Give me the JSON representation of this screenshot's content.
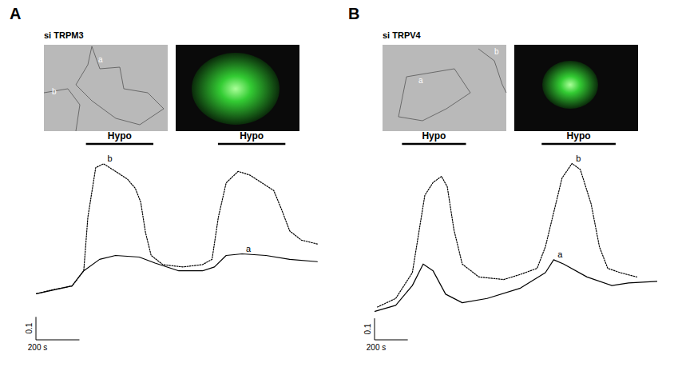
{
  "chart_data": [
    {
      "type": "line",
      "panel": "A",
      "title": "si TRPM3",
      "tick_labels": false,
      "xlim": [
        0,
        1300
      ],
      "ylim": [
        0,
        0.75
      ],
      "stimuli": [
        {
          "label": "Hypo",
          "start": 230,
          "end": 540
        },
        {
          "label": "Hypo",
          "start": 837,
          "end": 1147
        }
      ],
      "scale_bars": {
        "x": {
          "value": 200,
          "label": "200 s"
        },
        "y": {
          "value": 0.1,
          "label": "0.1"
        }
      },
      "series": [
        {
          "name": "a",
          "color": "#000000",
          "line_style": "solid",
          "x": [
            0,
            164,
            218,
            291,
            364,
            473,
            546,
            655,
            764,
            819,
            873,
            946,
            1056,
            1165,
            1292
          ],
          "values": [
            0.133,
            0.167,
            0.233,
            0.283,
            0.3,
            0.293,
            0.267,
            0.233,
            0.233,
            0.25,
            0.3,
            0.307,
            0.3,
            0.283,
            0.273
          ]
        },
        {
          "name": "b",
          "color": "#000000",
          "line_style": "dotted",
          "x": [
            0,
            73,
            164,
            218,
            237,
            273,
            309,
            364,
            419,
            455,
            480,
            502,
            528,
            582,
            673,
            764,
            808,
            837,
            873,
            928,
            983,
            1037,
            1092,
            1128,
            1165,
            1219,
            1292
          ],
          "values": [
            0.133,
            0.15,
            0.167,
            0.233,
            0.467,
            0.683,
            0.7,
            0.667,
            0.633,
            0.593,
            0.533,
            0.4,
            0.3,
            0.26,
            0.25,
            0.26,
            0.283,
            0.467,
            0.617,
            0.667,
            0.65,
            0.617,
            0.583,
            0.5,
            0.407,
            0.367,
            0.35
          ]
        }
      ]
    },
    {
      "type": "line",
      "panel": "B",
      "title": "si TRPV4",
      "tick_labels": false,
      "xlim": [
        0,
        1700
      ],
      "ylim": [
        0,
        0.8
      ],
      "stimuli": [
        {
          "label": "Hypo",
          "start": 165,
          "end": 550
        },
        {
          "label": "Hypo",
          "start": 1005,
          "end": 1450
        }
      ],
      "scale_bars": {
        "x": {
          "value": 200,
          "label": "200 s"
        },
        "y": {
          "value": 0.1,
          "label": "0.1"
        }
      },
      "series": [
        {
          "name": "a",
          "color": "#000000",
          "line_style": "solid",
          "x": [
            0,
            125,
            225,
            290,
            350,
            425,
            525,
            675,
            875,
            1025,
            1075,
            1135,
            1275,
            1425,
            1525,
            1700
          ],
          "values": [
            0.06,
            0.088,
            0.18,
            0.28,
            0.248,
            0.14,
            0.1,
            0.12,
            0.168,
            0.24,
            0.3,
            0.28,
            0.22,
            0.18,
            0.192,
            0.2
          ]
        },
        {
          "name": "b",
          "color": "#000000",
          "line_style": "dotted",
          "x": [
            15,
            125,
            225,
            300,
            350,
            400,
            435,
            475,
            525,
            625,
            775,
            875,
            975,
            1025,
            1075,
            1125,
            1185,
            1235,
            1300,
            1350,
            1400,
            1475,
            1575
          ],
          "values": [
            0.08,
            0.12,
            0.24,
            0.6,
            0.66,
            0.688,
            0.64,
            0.44,
            0.28,
            0.22,
            0.208,
            0.232,
            0.26,
            0.36,
            0.52,
            0.68,
            0.748,
            0.72,
            0.56,
            0.36,
            0.26,
            0.24,
            0.22
          ]
        }
      ]
    }
  ]
}
